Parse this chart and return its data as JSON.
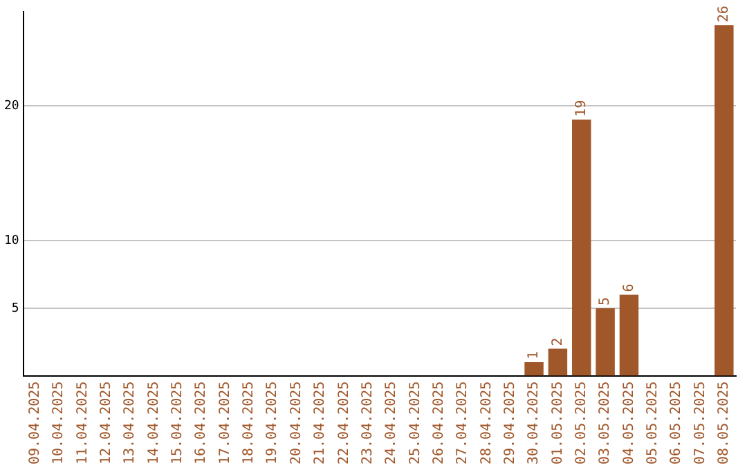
{
  "chart_data": {
    "type": "bar",
    "categories": [
      "09.04.2025",
      "10.04.2025",
      "11.04.2025",
      "12.04.2025",
      "13.04.2025",
      "14.04.2025",
      "15.04.2025",
      "16.04.2025",
      "17.04.2025",
      "18.04.2025",
      "19.04.2025",
      "20.04.2025",
      "21.04.2025",
      "22.04.2025",
      "23.04.2025",
      "24.04.2025",
      "25.04.2025",
      "26.04.2025",
      "27.04.2025",
      "28.04.2025",
      "29.04.2025",
      "30.04.2025",
      "01.05.2025",
      "02.05.2025",
      "03.05.2025",
      "04.05.2025",
      "05.05.2025",
      "06.05.2025",
      "07.05.2025",
      "08.05.2025"
    ],
    "values": [
      0,
      0,
      0,
      0,
      0,
      0,
      0,
      0,
      0,
      0,
      0,
      0,
      0,
      0,
      0,
      0,
      0,
      0,
      0,
      0,
      0,
      1,
      2,
      19,
      5,
      6,
      0,
      0,
      0,
      26
    ],
    "value_labels": [
      null,
      null,
      null,
      null,
      null,
      null,
      null,
      null,
      null,
      null,
      null,
      null,
      null,
      null,
      null,
      null,
      null,
      null,
      null,
      null,
      null,
      "1",
      "2",
      "19",
      "5",
      "6",
      null,
      null,
      null,
      "26"
    ],
    "color": "#a0572a",
    "ylim": [
      0,
      27
    ],
    "yticks": [
      5,
      10,
      20
    ],
    "grid": "y",
    "legend": false
  }
}
